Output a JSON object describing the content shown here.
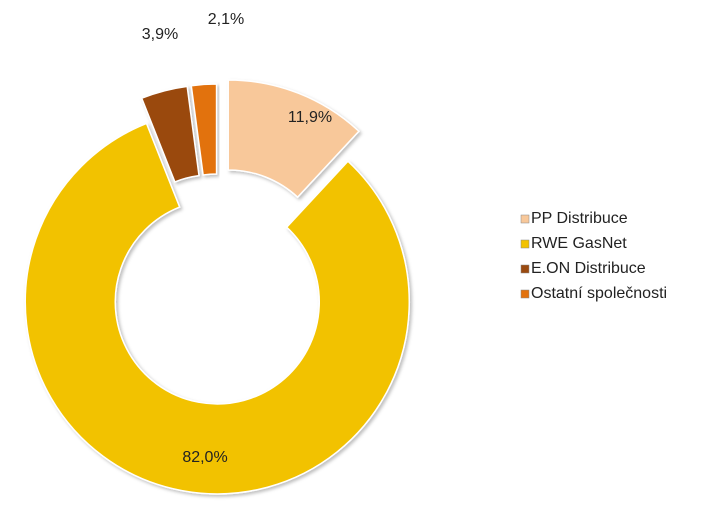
{
  "chart_data": {
    "type": "pie",
    "categories": [
      "PP Distribuce",
      "RWE GasNet",
      "E.ON Distribuce",
      "Ostatní společnosti"
    ],
    "values": [
      11.9,
      82.0,
      3.9,
      2.1
    ],
    "value_labels": [
      "11,9%",
      "82,0%",
      "3,9%",
      "2,1%"
    ],
    "colors": [
      "#f8c89a",
      "#f2c200",
      "#9a4a10",
      "#e2720e"
    ],
    "donut": true,
    "legend": "right"
  }
}
